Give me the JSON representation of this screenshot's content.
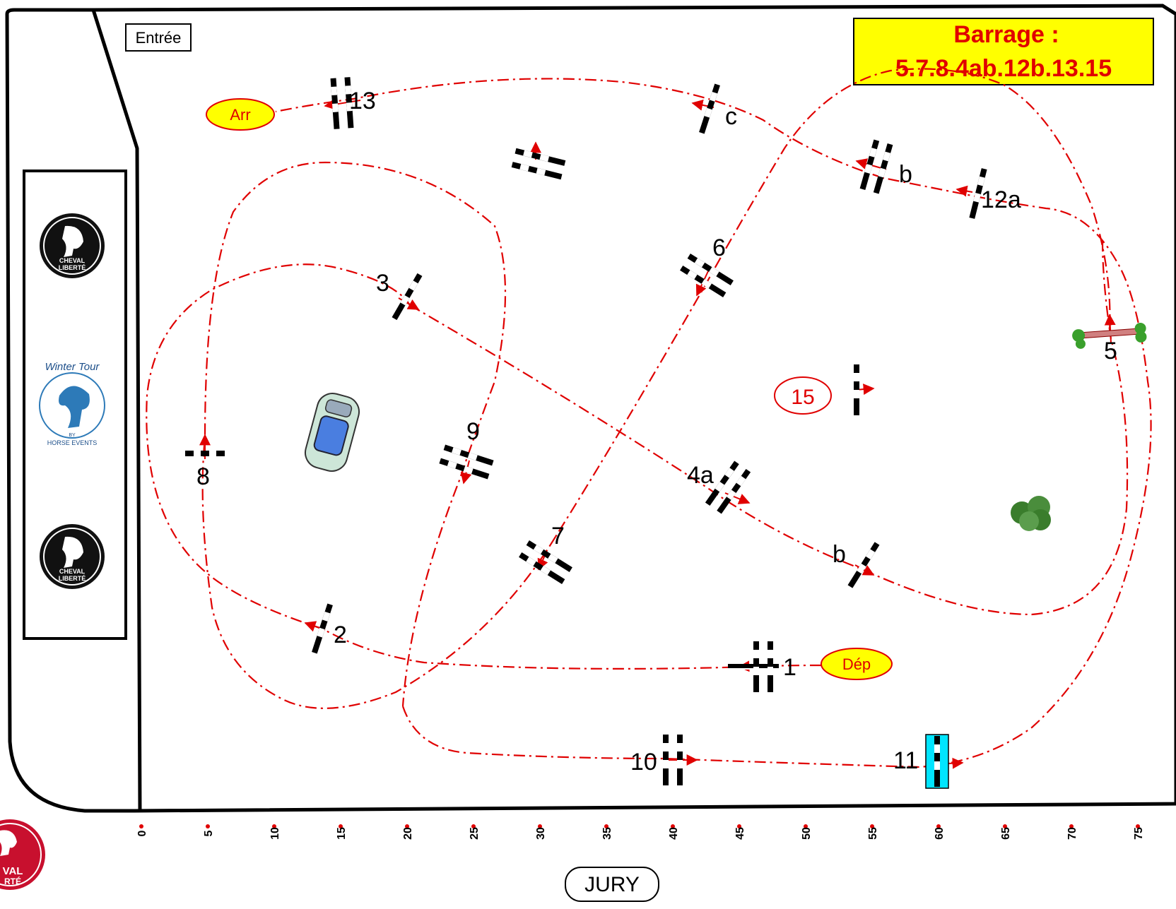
{
  "entrance_label": "Entrée",
  "barrage": {
    "title": "Barrage :",
    "sequence": "5.7.8.4ab.12b.13.15",
    "background": "#ffff00",
    "text_color": "#e00000"
  },
  "start_label": "Dép",
  "finish_label": "Arr",
  "jury_label": "JURY",
  "logos": {
    "brand_line1": "CHEVAL",
    "brand_line2": "LIBERTÉ",
    "winter_tour_line1": "Winter Tour",
    "winter_tour_by": "BY",
    "winter_tour_line2": "HORSE EVENTS",
    "corner_line1": "VAL",
    "corner_line2": "RTÉ"
  },
  "obstacles": {
    "o1": "1",
    "o2": "2",
    "o3": "3",
    "o4a": "4a",
    "o4b": "b",
    "o5": "5",
    "o6": "6",
    "o7": "7",
    "o8": "8",
    "o9": "9",
    "o10": "10",
    "o11": "11",
    "o12a": "12a",
    "o12b": "b",
    "o12c": "c",
    "o13": "13",
    "o15": "15"
  },
  "scale_ticks": [
    "0",
    "5",
    "10",
    "15",
    "20",
    "25",
    "30",
    "35",
    "40",
    "45",
    "50",
    "55",
    "60",
    "65",
    "70",
    "75"
  ],
  "colors": {
    "route": "#e00000",
    "oval_fill": "#ffff00",
    "water_jump": "#00e5ff",
    "tree": "#3a7d2c",
    "car": "#4a7ee0"
  }
}
